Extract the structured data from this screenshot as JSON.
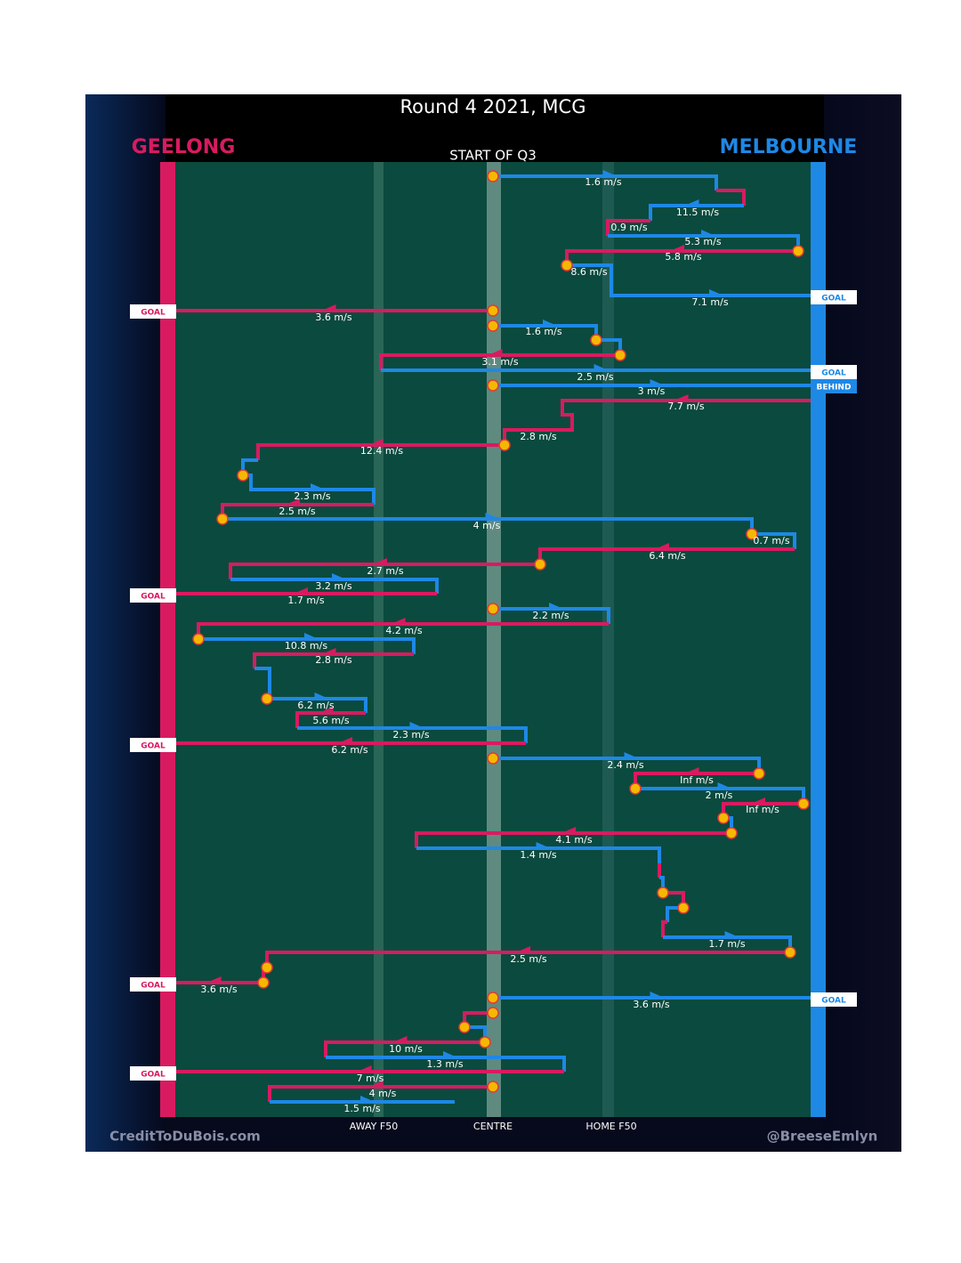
{
  "title": "Round 4 2021, MCG",
  "teams": {
    "left": "GEELONG",
    "right": "MELBOURNE"
  },
  "start_label": "START OF Q3",
  "axis_labels": [
    "AWAY F50",
    "CENTRE",
    "HOME F50"
  ],
  "credits": {
    "left": "CreditToDuBois.com",
    "right": "@BreeseEmlyn"
  },
  "speeds": [
    "1.6 m/s",
    "11.5 m/s",
    "0.9 m/s",
    "5.3 m/s",
    "5.8 m/s",
    "8.6 m/s",
    "7.1 m/s",
    "3.6 m/s",
    "1.6 m/s",
    "3.1 m/s",
    "2.5 m/s",
    "3 m/s",
    "7.7 m/s",
    "2.8 m/s",
    "12.4 m/s",
    "2.3 m/s",
    "2.5 m/s",
    "4 m/s",
    "0.7 m/s",
    "6.4 m/s",
    "2.7 m/s",
    "3.2 m/s",
    "1.7 m/s",
    "2.2 m/s",
    "4.2 m/s",
    "10.8 m/s",
    "2.8 m/s",
    "6.2 m/s",
    "5.6 m/s",
    "2.3 m/s",
    "6.2 m/s",
    "2.4 m/s",
    "Inf m/s",
    "2 m/s",
    "Inf m/s",
    "4.1 m/s",
    "1.4 m/s",
    "1.7 m/s",
    "2.5 m/s",
    "3.6 m/s",
    "3.6 m/s",
    "10 m/s",
    "1.3 m/s",
    "7 m/s",
    "4 m/s",
    "1.5 m/s"
  ],
  "results": [
    "GOAL",
    "GOAL",
    "GOAL",
    "BEHIND",
    "GOAL",
    "GOAL",
    "GOAL",
    "GOAL",
    "GOAL"
  ]
}
